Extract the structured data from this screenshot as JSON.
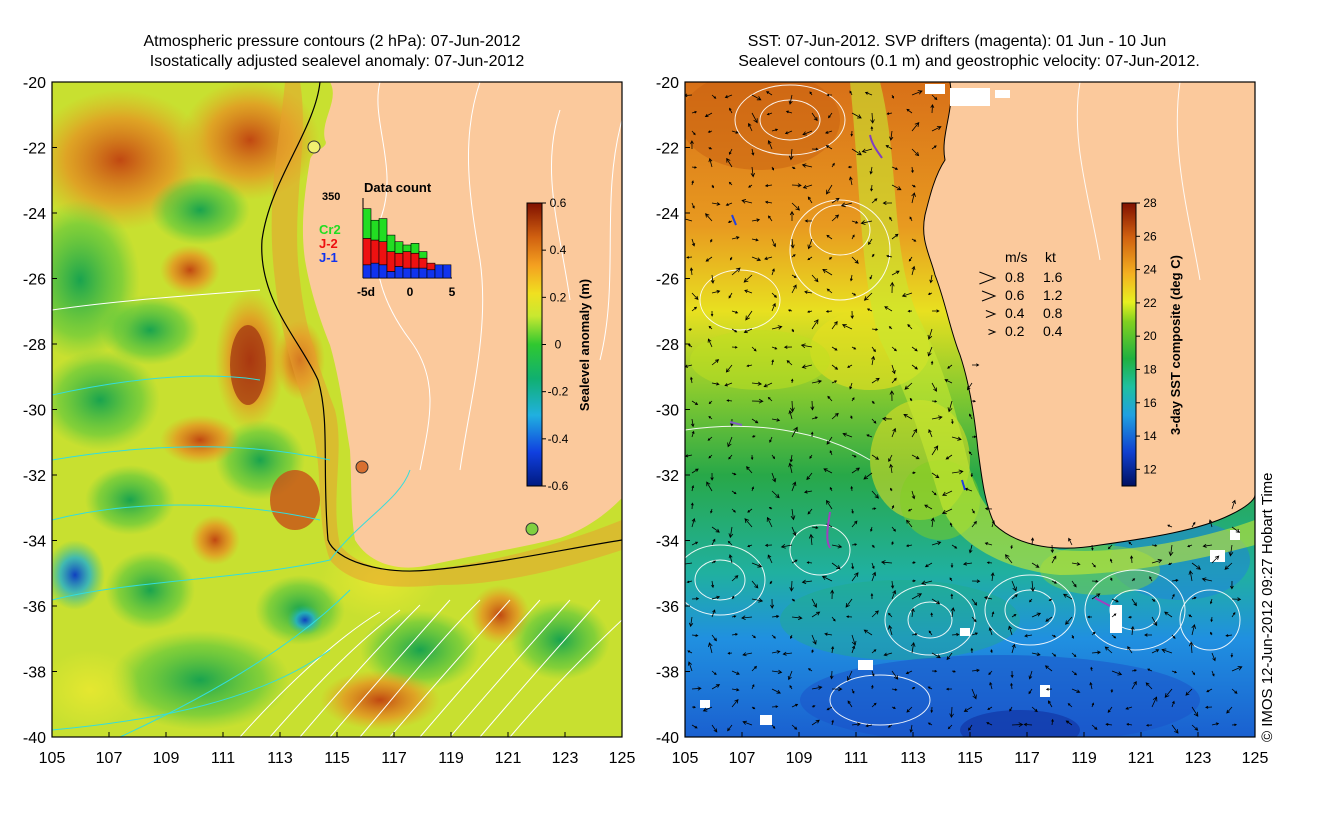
{
  "left_panel": {
    "title_line1": "Atmospheric pressure contours (2 hPa): 07-Jun-2012",
    "title_line2": "Isostatically adjusted sealevel anomaly: 07-Jun-2012",
    "colorbar": {
      "label": "Sealevel anomaly (m)",
      "ticks": [
        "0.6",
        "0.4",
        "0.2",
        "0",
        "-0.2",
        "-0.4",
        "-0.6"
      ],
      "min": -0.6,
      "max": 0.6
    },
    "inset": {
      "title": "Data count",
      "ymax_label": "350",
      "legend": [
        {
          "label": "Cr2",
          "color": "#22dd22"
        },
        {
          "label": "J-2",
          "color": "#ee1111"
        },
        {
          "label": "J-1",
          "color": "#1133ee"
        }
      ],
      "x_ticks": [
        "-5d",
        "0",
        "5"
      ],
      "bars": [
        {
          "j1": 40,
          "j2": 80,
          "cr2": 90
        },
        {
          "j1": 45,
          "j2": 70,
          "cr2": 60
        },
        {
          "j1": 40,
          "j2": 70,
          "cr2": 70
        },
        {
          "j1": 20,
          "j2": 60,
          "cr2": 50
        },
        {
          "j1": 35,
          "j2": 40,
          "cr2": 35
        },
        {
          "j1": 30,
          "j2": 50,
          "cr2": 20
        },
        {
          "j1": 30,
          "j2": 45,
          "cr2": 30
        },
        {
          "j1": 30,
          "j2": 30,
          "cr2": 20
        },
        {
          "j1": 25,
          "j2": 20,
          "cr2": 0
        },
        {
          "j1": 40,
          "j2": 0,
          "cr2": 0
        },
        {
          "j1": 40,
          "j2": 0,
          "cr2": 0
        }
      ]
    }
  },
  "right_panel": {
    "title_line1": "SST: 07-Jun-2012. SVP drifters (magenta): 01 Jun - 10 Jun",
    "title_line2": "Sealevel contours (0.1 m) and geostrophic velocity: 07-Jun-2012.",
    "colorbar": {
      "label": "3-day SST composite (deg C)",
      "ticks": [
        "28",
        "26",
        "24",
        "22",
        "20",
        "18",
        "16",
        "14",
        "12"
      ],
      "min": 11,
      "max": 28
    },
    "speed_legend": {
      "header_ms": "m/s",
      "header_kt": "kt",
      "rows": [
        {
          "ms": "0.8",
          "kt": "1.6"
        },
        {
          "ms": "0.6",
          "kt": "1.2"
        },
        {
          "ms": "0.4",
          "kt": "0.8"
        },
        {
          "ms": "0.2",
          "kt": "0.4"
        }
      ]
    },
    "credit": "© IMOS 12-Jun-2012 09:27 Hobart Time"
  },
  "axes": {
    "lon_ticks": [
      "105",
      "107",
      "109",
      "111",
      "113",
      "115",
      "117",
      "119",
      "121",
      "123",
      "125"
    ],
    "lat_ticks": [
      "-20",
      "-22",
      "-24",
      "-26",
      "-28",
      "-30",
      "-32",
      "-34",
      "-36",
      "-38",
      "-40"
    ],
    "lon_range": [
      105,
      125
    ],
    "lat_range": [
      -40,
      -20
    ]
  },
  "colors": {
    "land": "#fbc99c",
    "coast": "#000000",
    "contour_white": "#ffffff",
    "contour_cyan": "#33dddd"
  }
}
